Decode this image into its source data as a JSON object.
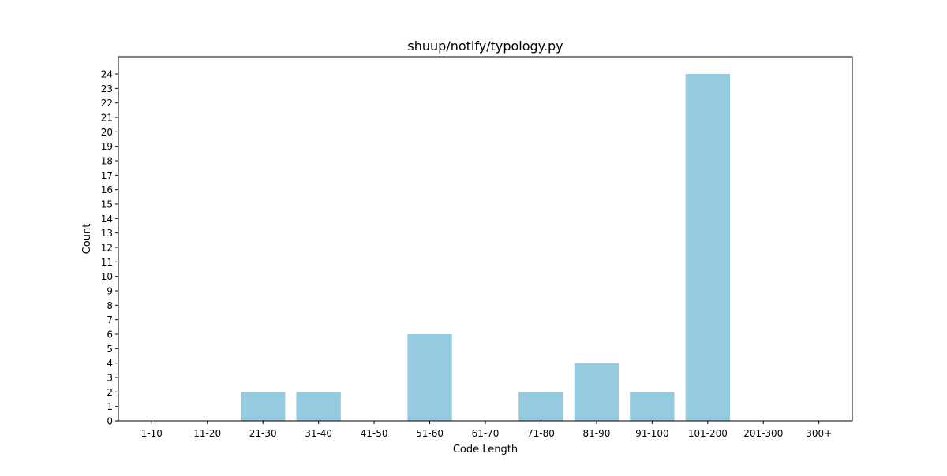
{
  "chart_data": {
    "type": "bar",
    "title": "shuup/notify/typology.py",
    "xlabel": "Code Length",
    "ylabel": "Count",
    "categories": [
      "1-10",
      "11-20",
      "21-30",
      "31-40",
      "41-50",
      "51-60",
      "61-70",
      "71-80",
      "81-90",
      "91-100",
      "101-200",
      "201-300",
      "300+"
    ],
    "values": [
      0,
      0,
      2,
      2,
      0,
      6,
      0,
      2,
      4,
      2,
      24,
      0,
      0
    ],
    "ylim": [
      0,
      25.2
    ],
    "yticks": [
      0,
      1,
      2,
      3,
      4,
      5,
      6,
      7,
      8,
      9,
      10,
      11,
      12,
      13,
      14,
      15,
      16,
      17,
      18,
      19,
      20,
      21,
      22,
      23,
      24
    ],
    "bar_color": "#96CAE0",
    "grid": false,
    "legend": "none"
  }
}
